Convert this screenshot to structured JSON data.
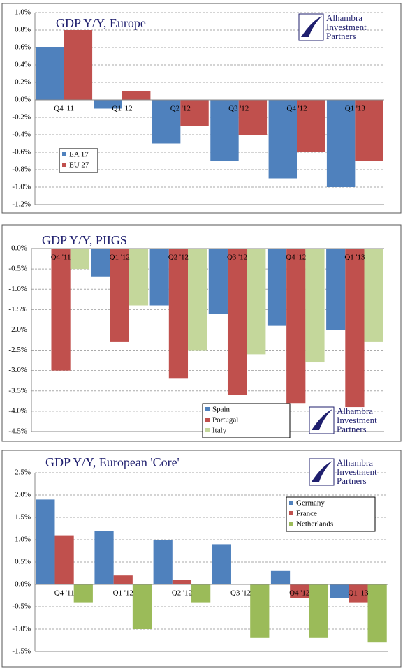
{
  "chart_data": [
    {
      "type": "bar",
      "title": "GDP Y/Y, Europe",
      "logo": [
        "Alhambra",
        "Investment",
        "Partners"
      ],
      "categories": [
        "Q4 '11",
        "Q1 '12",
        "Q2 '12",
        "Q3 '12",
        "Q4 '12",
        "Q1 '13"
      ],
      "series": [
        {
          "name": "EA 17",
          "color": "#4f81bd",
          "values": [
            0.6,
            -0.1,
            -0.5,
            -0.7,
            -0.9,
            -1.0
          ]
        },
        {
          "name": "EU 27",
          "color": "#c0504d",
          "values": [
            0.8,
            0.1,
            -0.3,
            -0.4,
            -0.6,
            -0.7
          ]
        }
      ],
      "ylim": [
        -1.2,
        1.0
      ],
      "yticks": [
        {
          "value": -1.2,
          "label": "-1.2%"
        },
        {
          "value": -1.0,
          "label": "-1.0%"
        },
        {
          "value": -0.8,
          "label": "-0.8%"
        },
        {
          "value": -0.6,
          "label": "-0.6%"
        },
        {
          "value": -0.4,
          "label": "-0.4%"
        },
        {
          "value": -0.2,
          "label": "-0.2%"
        },
        {
          "value": 0,
          "label": "0.0%"
        },
        {
          "value": 0.2,
          "label": "0.2%"
        },
        {
          "value": 0.4,
          "label": "0.4%"
        },
        {
          "value": 0.6,
          "label": "0.6%"
        },
        {
          "value": 0.8,
          "label": "0.8%"
        },
        {
          "value": 1.0,
          "label": "1.0%"
        }
      ],
      "grid": true
    },
    {
      "type": "bar",
      "title": "GDP Y/Y, PIIGS",
      "logo": [
        "Alhambra",
        "Investment",
        "Partners"
      ],
      "categories": [
        "Q4 '11",
        "Q1 '12",
        "Q2 '12",
        "Q3 '12",
        "Q4 '12",
        "Q1 '13"
      ],
      "series": [
        {
          "name": "Spain",
          "color": "#4f81bd",
          "values": [
            0,
            -0.7,
            -1.4,
            -1.6,
            -1.9,
            -2.0
          ]
        },
        {
          "name": "Portugal",
          "color": "#c0504d",
          "values": [
            -3.0,
            -2.3,
            -3.2,
            -3.6,
            -3.8,
            -3.9
          ]
        },
        {
          "name": "Italy",
          "color": "#c4d79b",
          "values": [
            -0.5,
            -1.4,
            -2.5,
            -2.6,
            -2.8,
            -2.3
          ]
        }
      ],
      "ylim": [
        -4.5,
        0
      ],
      "yticks": [
        {
          "value": -4.5,
          "label": "-4.5%"
        },
        {
          "value": -4.0,
          "label": "-4.0%"
        },
        {
          "value": -3.5,
          "label": "-3.5%"
        },
        {
          "value": -3.0,
          "label": "-3.0%"
        },
        {
          "value": -2.5,
          "label": "-2.5%"
        },
        {
          "value": -2.0,
          "label": "-2.0%"
        },
        {
          "value": -1.5,
          "label": "-1.5%"
        },
        {
          "value": -1.0,
          "label": "-1.0%"
        },
        {
          "value": -0.5,
          "label": "-0.5%"
        },
        {
          "value": 0,
          "label": "0.0%"
        }
      ],
      "grid": true
    },
    {
      "type": "bar",
      "title": "GDP Y/Y, European 'Core'",
      "logo": [
        "Alhambra",
        "Investment",
        "Partners"
      ],
      "categories": [
        "Q4 '11",
        "Q1 '12",
        "Q2 '12",
        "Q3 '12",
        "Q4 '12",
        "Q1 '13"
      ],
      "series": [
        {
          "name": "Germany",
          "color": "#4f81bd",
          "values": [
            1.9,
            1.2,
            1.0,
            0.9,
            0.3,
            -0.3
          ]
        },
        {
          "name": "France",
          "color": "#c0504d",
          "values": [
            1.1,
            0.2,
            0.1,
            0.0,
            -0.3,
            -0.4
          ]
        },
        {
          "name": "Netherlands",
          "color": "#9bbb59",
          "values": [
            -0.4,
            -1.0,
            -0.4,
            -1.2,
            -1.2,
            -1.3
          ]
        }
      ],
      "ylim": [
        -1.5,
        2.5
      ],
      "yticks": [
        {
          "value": -1.5,
          "label": "-1.5%"
        },
        {
          "value": -1.0,
          "label": "-1.0%"
        },
        {
          "value": -0.5,
          "label": "-0.5%"
        },
        {
          "value": 0,
          "label": "0.0%"
        },
        {
          "value": 0.5,
          "label": "0.5%"
        },
        {
          "value": 1.0,
          "label": "1.0%"
        },
        {
          "value": 1.5,
          "label": "1.5%"
        },
        {
          "value": 2.0,
          "label": "2.0%"
        },
        {
          "value": 2.5,
          "label": "2.5%"
        }
      ],
      "grid": true
    }
  ]
}
